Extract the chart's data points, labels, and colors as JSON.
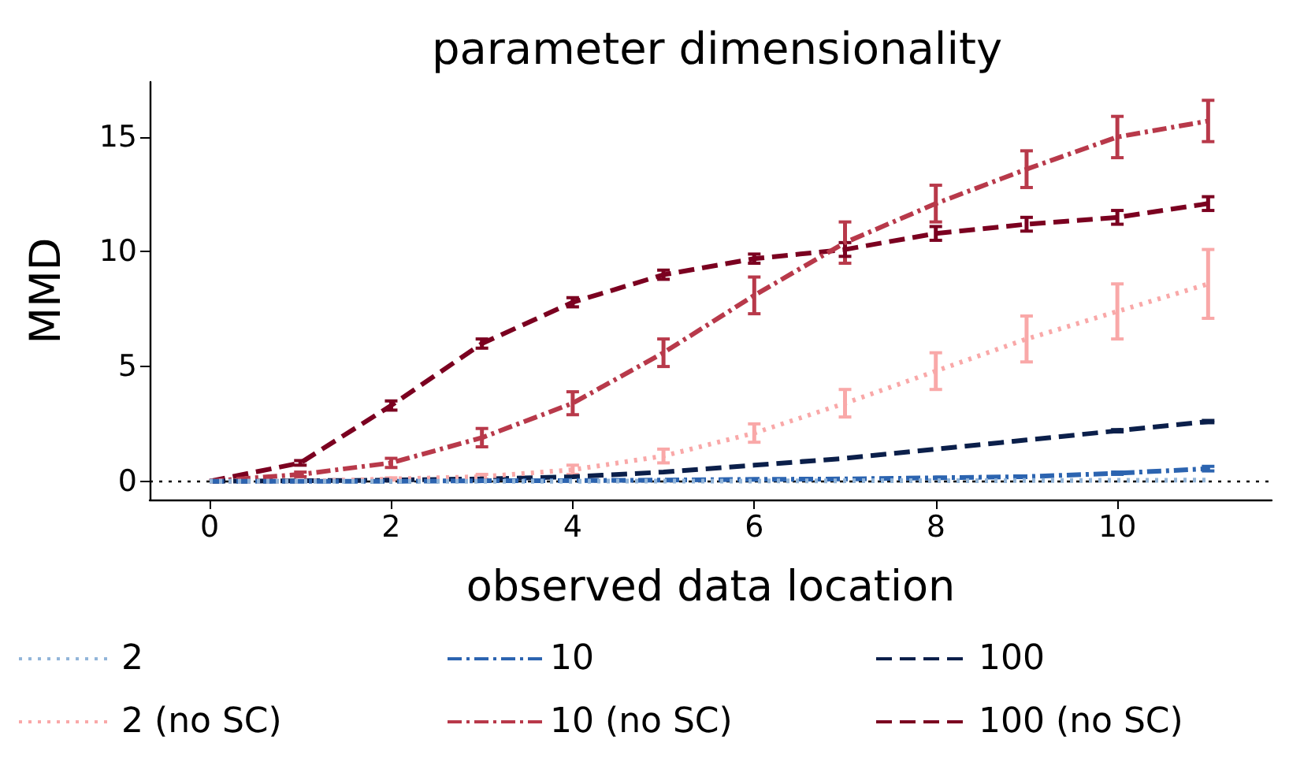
{
  "chart_data": {
    "type": "line",
    "title": "parameter dimensionality",
    "xlabel": "observed data location",
    "ylabel": "MMD",
    "x": [
      0,
      1,
      2,
      3,
      4,
      5,
      6,
      7,
      8,
      9,
      10,
      11
    ],
    "series": [
      {
        "name": "2",
        "color": "#92b5d9",
        "line_style": "dotted",
        "values": [
          0,
          0,
          0,
          0,
          0,
          0.01,
          0.01,
          0.02,
          0.02,
          0.03,
          0.04,
          0.05
        ]
      },
      {
        "name": "2 (no SC)",
        "color": "#f9a8a8",
        "line_style": "dotted",
        "values": [
          0,
          0,
          0.1,
          0.2,
          0.5,
          1.1,
          2.1,
          3.4,
          4.8,
          6.2,
          7.4,
          8.6
        ],
        "errors": [
          null,
          null,
          0.05,
          0.1,
          0.2,
          0.3,
          0.4,
          0.6,
          0.8,
          1.0,
          1.2,
          1.5
        ]
      },
      {
        "name": "10",
        "color": "#2c64b0",
        "line_style": "dashdot",
        "values": [
          0,
          0,
          0,
          0.02,
          0.03,
          0.05,
          0.08,
          0.1,
          0.15,
          0.2,
          0.35,
          0.55
        ],
        "errors": [
          null,
          null,
          null,
          null,
          null,
          null,
          null,
          null,
          null,
          null,
          0.05,
          0.1
        ]
      },
      {
        "name": "10 (no SC)",
        "color": "#b8394a",
        "line_style": "dashdot",
        "values": [
          0,
          0.3,
          0.8,
          1.9,
          3.4,
          5.6,
          8.1,
          10.4,
          12.1,
          13.6,
          15.0,
          15.7
        ],
        "errors": [
          null,
          0.1,
          0.2,
          0.4,
          0.5,
          0.6,
          0.8,
          0.9,
          0.8,
          0.8,
          0.9,
          0.9
        ]
      },
      {
        "name": "100",
        "color": "#0b1f4a",
        "line_style": "dashed",
        "values": [
          0,
          0.02,
          0.05,
          0.1,
          0.2,
          0.4,
          0.7,
          1.0,
          1.4,
          1.8,
          2.2,
          2.6
        ],
        "errors": [
          null,
          null,
          null,
          null,
          null,
          null,
          null,
          null,
          null,
          null,
          0.05,
          0.05
        ]
      },
      {
        "name": "100 (no SC)",
        "color": "#7b0020",
        "line_style": "dashed",
        "values": [
          0,
          0.8,
          3.3,
          6.0,
          7.8,
          9.0,
          9.7,
          10.1,
          10.8,
          11.2,
          11.5,
          12.1
        ],
        "errors": [
          null,
          0.1,
          0.2,
          0.2,
          0.2,
          0.2,
          0.2,
          0.3,
          0.3,
          0.3,
          0.3,
          0.3
        ]
      }
    ],
    "xlim": [
      -0.66,
      11.7
    ],
    "xticks": [
      0,
      2,
      4,
      6,
      8,
      10
    ],
    "ylim": [
      -0.8,
      17.4
    ],
    "yticks": [
      0,
      5,
      10,
      15
    ],
    "ref_lines": [
      {
        "axis": "y",
        "value": 0,
        "color": "#000000",
        "line_style": "dotted"
      }
    ],
    "grid": false,
    "legend": "bottom",
    "marker": "none"
  }
}
